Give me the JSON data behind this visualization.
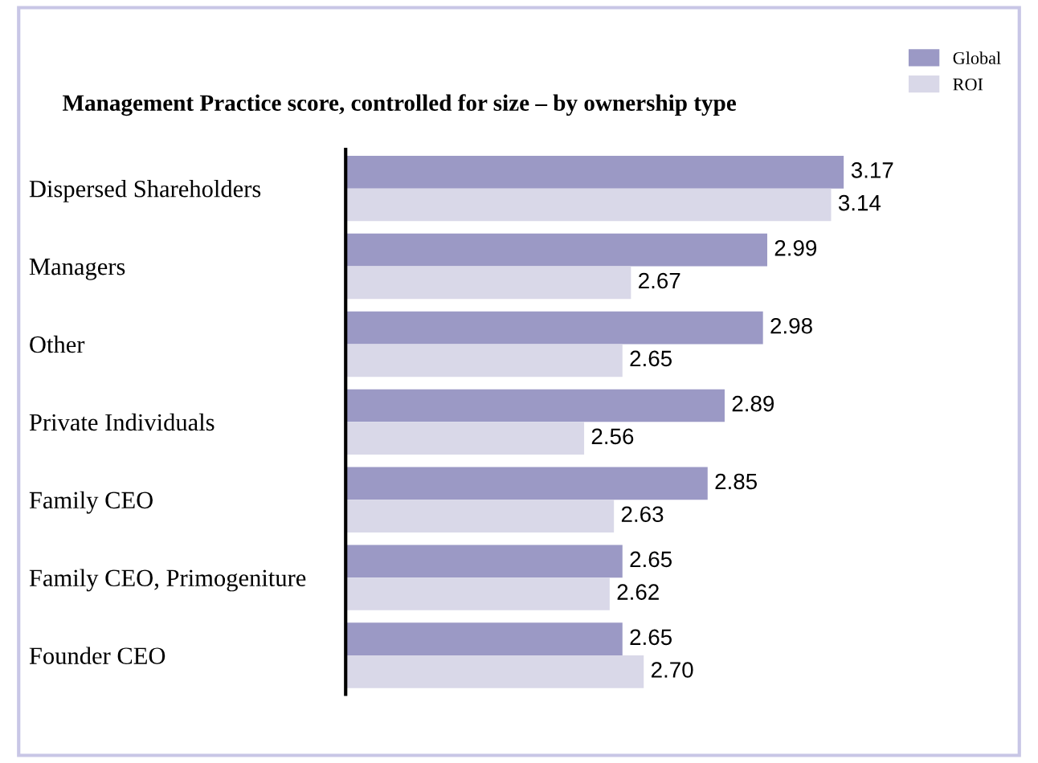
{
  "chart_data": {
    "type": "bar",
    "orientation": "horizontal",
    "title": "Management Practice score, controlled for size – by ownership type",
    "categories": [
      "Dispersed Shareholders",
      "Managers",
      "Other",
      "Private Individuals",
      "Family CEO",
      "Family CEO, Primogeniture",
      "Founder CEO"
    ],
    "series": [
      {
        "name": "Global",
        "color": "#9b99c5",
        "values": [
          3.17,
          2.99,
          2.98,
          2.89,
          2.85,
          2.65,
          2.65
        ],
        "value_labels": [
          "3.17",
          "2.99",
          "2.98",
          "2.89",
          "2.85",
          "2.65",
          "2.65"
        ]
      },
      {
        "name": "ROI",
        "color": "#d9d8e8",
        "values": [
          3.14,
          2.67,
          2.65,
          2.56,
          2.63,
          2.62,
          2.7
        ],
        "value_labels": [
          "3.14",
          "2.67",
          "2.65",
          "2.56",
          "2.63",
          "2.62",
          "2.70"
        ]
      }
    ],
    "xlim": [
      2.0,
      3.17
    ],
    "tick_labels": "y",
    "legend": "top right",
    "grid": false
  }
}
